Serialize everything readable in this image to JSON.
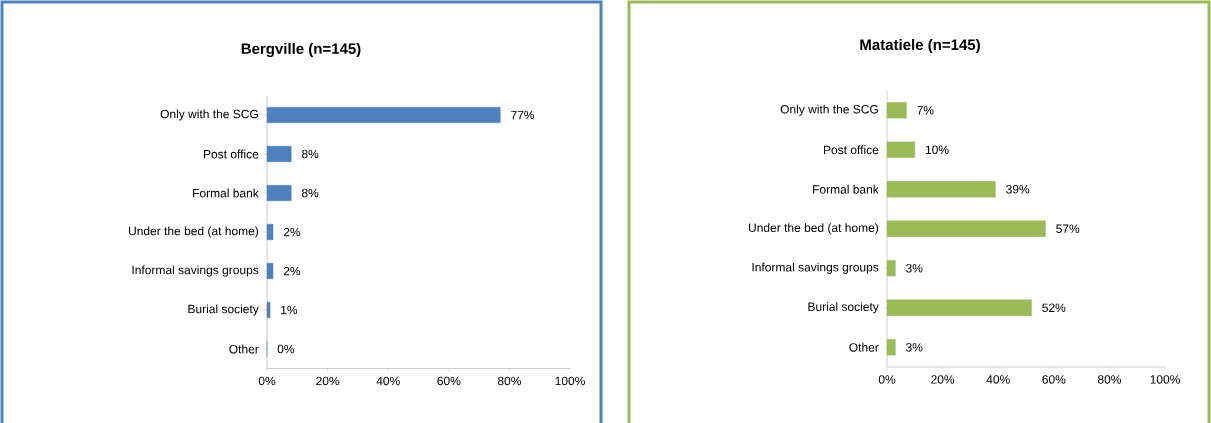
{
  "chart_data": [
    {
      "type": "bar",
      "orientation": "horizontal",
      "title": "Bergville (n=145)",
      "categories": [
        "Only with the SCG",
        "Post office",
        "Formal bank",
        "Under the bed (at home)",
        "Informal savings groups",
        "Burial society",
        "Other"
      ],
      "values": [
        77,
        8,
        8,
        2,
        2,
        1,
        0
      ],
      "value_labels": [
        "77%",
        "8%",
        "8%",
        "2%",
        "2%",
        "1%",
        "0%"
      ],
      "color": "#4f81bd",
      "xlim": [
        0,
        100
      ],
      "xticks": [
        {
          "value": 0,
          "label": "0%"
        },
        {
          "value": 20,
          "label": "20%"
        },
        {
          "value": 40,
          "label": "40%"
        },
        {
          "value": 60,
          "label": "60%"
        },
        {
          "value": 80,
          "label": "80%"
        },
        {
          "value": 100,
          "label": "100%"
        }
      ]
    },
    {
      "type": "bar",
      "orientation": "horizontal",
      "title": "Matatiele (n=145)",
      "categories": [
        "Only with the SCG",
        "Post office",
        "Formal bank",
        "Under the bed (at home)",
        "Informal savings groups",
        "Burial society",
        "Other"
      ],
      "values": [
        7,
        10,
        39,
        57,
        3,
        52,
        3
      ],
      "value_labels": [
        "7%",
        "10%",
        "39%",
        "57%",
        "3%",
        "52%",
        "3%"
      ],
      "color": "#9bbb59",
      "xlim": [
        0,
        100
      ],
      "xticks": [
        {
          "value": 0,
          "label": "0%"
        },
        {
          "value": 20,
          "label": "20%"
        },
        {
          "value": 40,
          "label": "40%"
        },
        {
          "value": 60,
          "label": "60%"
        },
        {
          "value": 80,
          "label": "80%"
        },
        {
          "value": 100,
          "label": "100%"
        }
      ]
    }
  ]
}
